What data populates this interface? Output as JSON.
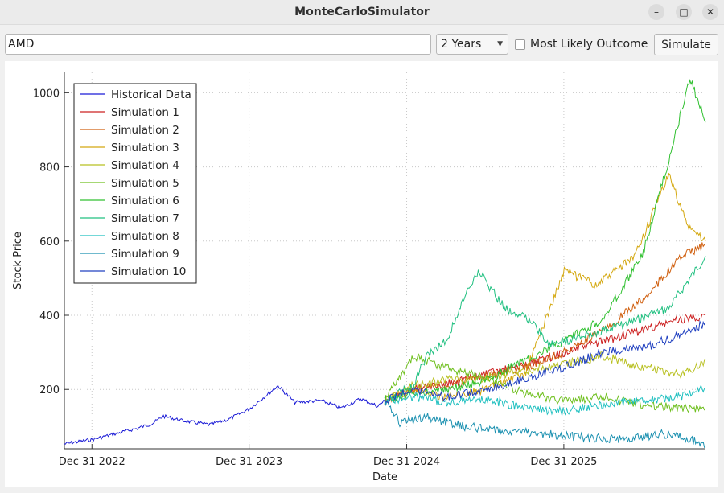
{
  "window": {
    "title": "MonteCarloSimulator",
    "minimize_icon": "minimize-icon",
    "maximize_icon": "maximize-icon",
    "close_icon": "close-icon"
  },
  "toolbar": {
    "ticker_value": "AMD",
    "period_selected": "2 Years",
    "most_likely_label": "Most Likely Outcome",
    "most_likely_checked": false,
    "simulate_label": "Simulate"
  },
  "chart_data": {
    "type": "line",
    "xlabel": "Date",
    "ylabel": "Stock Price",
    "x_axis_type": "date",
    "xlim": [
      "2022-10-28",
      "2026-11-25"
    ],
    "ylim": [
      40,
      1055
    ],
    "x_ticks": [
      "2022-12-31",
      "2023-12-31",
      "2024-12-31",
      "2025-12-31"
    ],
    "x_tick_labels": [
      "Dec 31 2022",
      "Dec 31 2023",
      "Dec 31 2024",
      "Dec 31 2025"
    ],
    "y_ticks": [
      200,
      400,
      600,
      800,
      1000
    ],
    "grid": true,
    "legend_position": "top-left",
    "series": [
      {
        "name": "Historical Data",
        "color": "#1a1ad6",
        "points": [
          [
            "2022-10-28",
            53
          ],
          [
            "2023-01-01",
            65
          ],
          [
            "2023-02-15",
            78
          ],
          [
            "2023-04-15",
            95
          ],
          [
            "2023-05-20",
            108
          ],
          [
            "2023-06-15",
            128
          ],
          [
            "2023-08-01",
            115
          ],
          [
            "2023-10-01",
            105
          ],
          [
            "2023-11-15",
            120
          ],
          [
            "2024-01-01",
            148
          ],
          [
            "2024-02-15",
            190
          ],
          [
            "2024-03-07",
            210
          ],
          [
            "2024-04-15",
            165
          ],
          [
            "2024-06-15",
            170
          ],
          [
            "2024-08-01",
            150
          ],
          [
            "2024-09-15",
            175
          ],
          [
            "2024-10-25",
            155
          ],
          [
            "2024-11-10",
            170
          ]
        ]
      },
      {
        "name": "Simulation 1",
        "color": "#cc2020",
        "points": [
          [
            "2024-11-10",
            170
          ],
          [
            "2025-01-15",
            200
          ],
          [
            "2025-04-01",
            215
          ],
          [
            "2025-07-01",
            240
          ],
          [
            "2025-10-01",
            265
          ],
          [
            "2026-01-01",
            300
          ],
          [
            "2026-04-01",
            330
          ],
          [
            "2026-07-01",
            360
          ],
          [
            "2026-10-01",
            390
          ],
          [
            "2026-11-25",
            400
          ]
        ]
      },
      {
        "name": "Simulation 2",
        "color": "#d06010",
        "points": [
          [
            "2024-11-10",
            170
          ],
          [
            "2025-01-15",
            200
          ],
          [
            "2025-04-01",
            210
          ],
          [
            "2025-07-01",
            235
          ],
          [
            "2025-10-01",
            260
          ],
          [
            "2026-01-01",
            300
          ],
          [
            "2026-04-01",
            360
          ],
          [
            "2026-07-01",
            440
          ],
          [
            "2026-10-01",
            560
          ],
          [
            "2026-11-25",
            590
          ]
        ]
      },
      {
        "name": "Simulation 3",
        "color": "#d4a810",
        "points": [
          [
            "2024-11-10",
            170
          ],
          [
            "2025-01-15",
            200
          ],
          [
            "2025-04-01",
            180
          ],
          [
            "2025-07-01",
            200
          ],
          [
            "2025-10-01",
            240
          ],
          [
            "2026-01-01",
            520
          ],
          [
            "2026-03-15",
            480
          ],
          [
            "2026-06-15",
            560
          ],
          [
            "2026-09-01",
            780
          ],
          [
            "2026-10-15",
            640
          ],
          [
            "2026-11-25",
            600
          ]
        ]
      },
      {
        "name": "Simulation 4",
        "color": "#b8c020",
        "points": [
          [
            "2024-11-10",
            170
          ],
          [
            "2025-01-15",
            210
          ],
          [
            "2025-04-01",
            225
          ],
          [
            "2025-07-01",
            230
          ],
          [
            "2025-10-01",
            250
          ],
          [
            "2026-01-01",
            270
          ],
          [
            "2026-04-01",
            290
          ],
          [
            "2026-07-01",
            260
          ],
          [
            "2026-10-01",
            240
          ],
          [
            "2026-11-25",
            280
          ]
        ]
      },
      {
        "name": "Simulation 5",
        "color": "#70c020",
        "points": [
          [
            "2024-11-10",
            170
          ],
          [
            "2025-01-15",
            290
          ],
          [
            "2025-04-01",
            260
          ],
          [
            "2025-07-01",
            230
          ],
          [
            "2025-10-01",
            190
          ],
          [
            "2026-01-01",
            170
          ],
          [
            "2026-04-01",
            180
          ],
          [
            "2026-07-01",
            160
          ],
          [
            "2026-10-01",
            150
          ],
          [
            "2026-11-25",
            145
          ]
        ]
      },
      {
        "name": "Simulation 6",
        "color": "#30c030",
        "points": [
          [
            "2024-11-10",
            170
          ],
          [
            "2025-01-15",
            190
          ],
          [
            "2025-04-01",
            200
          ],
          [
            "2025-07-01",
            220
          ],
          [
            "2025-10-01",
            280
          ],
          [
            "2026-01-01",
            330
          ],
          [
            "2026-04-01",
            390
          ],
          [
            "2026-07-01",
            560
          ],
          [
            "2026-09-01",
            820
          ],
          [
            "2026-10-20",
            1040
          ],
          [
            "2026-11-25",
            920
          ]
        ]
      },
      {
        "name": "Simulation 7",
        "color": "#20c080",
        "points": [
          [
            "2024-11-10",
            170
          ],
          [
            "2025-01-15",
            210
          ],
          [
            "2025-02-15",
            290
          ],
          [
            "2025-04-01",
            330
          ],
          [
            "2025-05-15",
            450
          ],
          [
            "2025-06-15",
            520
          ],
          [
            "2025-08-15",
            420
          ],
          [
            "2025-10-01",
            400
          ],
          [
            "2025-12-01",
            320
          ],
          [
            "2026-03-01",
            350
          ],
          [
            "2026-06-01",
            380
          ],
          [
            "2026-09-01",
            420
          ],
          [
            "2026-11-25",
            560
          ]
        ]
      },
      {
        "name": "Simulation 8",
        "color": "#20c0c0",
        "points": [
          [
            "2024-11-10",
            170
          ],
          [
            "2025-01-15",
            180
          ],
          [
            "2025-04-01",
            165
          ],
          [
            "2025-07-01",
            175
          ],
          [
            "2025-10-01",
            150
          ],
          [
            "2026-01-01",
            140
          ],
          [
            "2026-04-01",
            160
          ],
          [
            "2026-07-01",
            170
          ],
          [
            "2026-10-01",
            180
          ],
          [
            "2026-11-25",
            205
          ]
        ]
      },
      {
        "name": "Simulation 9",
        "color": "#1a90b0",
        "points": [
          [
            "2024-11-10",
            170
          ],
          [
            "2024-12-15",
            110
          ],
          [
            "2025-02-15",
            125
          ],
          [
            "2025-05-15",
            100
          ],
          [
            "2025-08-15",
            90
          ],
          [
            "2025-11-15",
            80
          ],
          [
            "2026-02-15",
            70
          ],
          [
            "2026-05-15",
            65
          ],
          [
            "2026-08-15",
            80
          ],
          [
            "2026-10-15",
            70
          ],
          [
            "2026-11-25",
            45
          ]
        ]
      },
      {
        "name": "Simulation 10",
        "color": "#2040c0",
        "points": [
          [
            "2024-11-10",
            170
          ],
          [
            "2025-01-15",
            200
          ],
          [
            "2025-04-01",
            180
          ],
          [
            "2025-07-01",
            200
          ],
          [
            "2025-10-01",
            230
          ],
          [
            "2026-01-01",
            260
          ],
          [
            "2026-04-01",
            300
          ],
          [
            "2026-07-01",
            310
          ],
          [
            "2026-10-01",
            350
          ],
          [
            "2026-11-25",
            380
          ]
        ]
      }
    ]
  }
}
